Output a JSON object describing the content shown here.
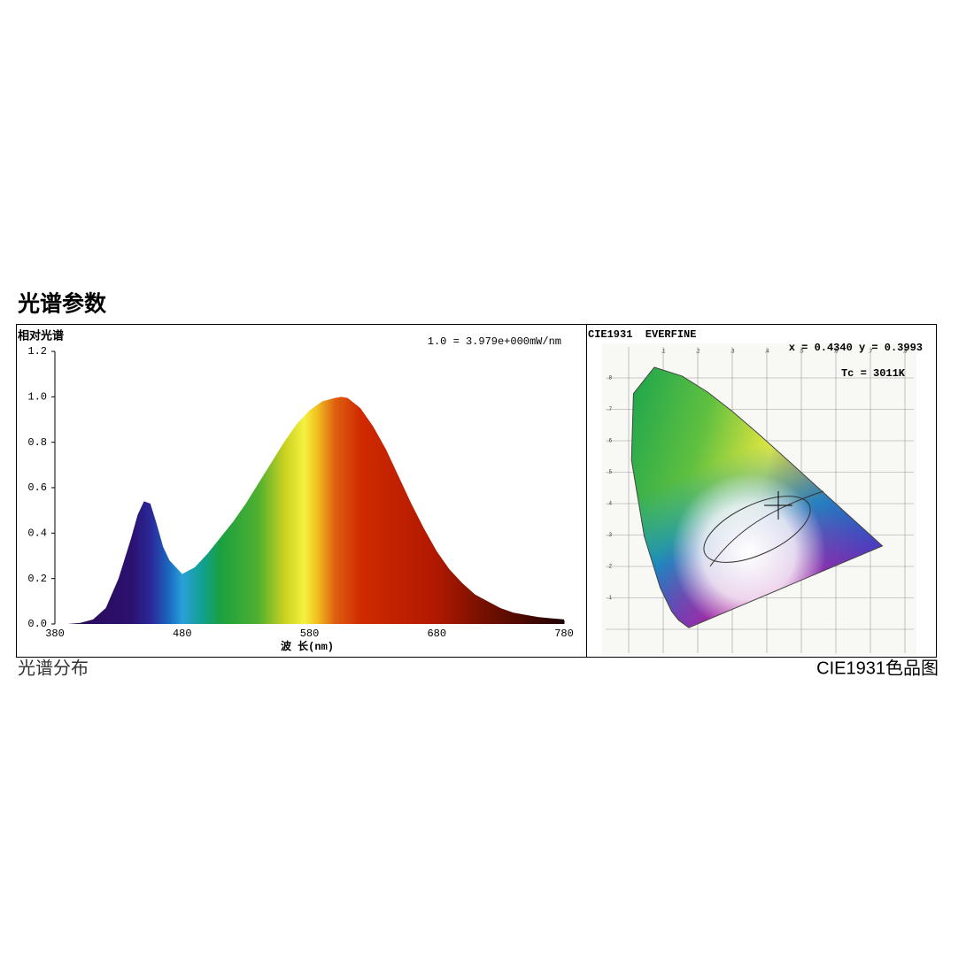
{
  "page": {
    "title": "光谱参数",
    "left_caption": "光谱分布",
    "right_caption": "CIE1931色品图"
  },
  "chart_data": {
    "type": "area",
    "y_label": "相对光谱",
    "note": "1.0 = 3.979e+000mW/nm",
    "x_label": "波 长(nm)",
    "x": [
      380,
      390,
      400,
      410,
      420,
      430,
      440,
      445,
      450,
      455,
      460,
      465,
      470,
      480,
      490,
      500,
      510,
      520,
      530,
      540,
      550,
      560,
      570,
      580,
      590,
      600,
      605,
      610,
      620,
      630,
      640,
      650,
      660,
      670,
      680,
      690,
      700,
      710,
      720,
      730,
      740,
      750,
      760,
      770,
      780
    ],
    "series": [
      {
        "values": [
          0,
          0,
          0.005,
          0.02,
          0.07,
          0.2,
          0.38,
          0.48,
          0.54,
          0.53,
          0.44,
          0.34,
          0.28,
          0.22,
          0.25,
          0.31,
          0.38,
          0.45,
          0.53,
          0.62,
          0.71,
          0.8,
          0.88,
          0.94,
          0.98,
          0.995,
          1.0,
          0.995,
          0.95,
          0.87,
          0.77,
          0.65,
          0.53,
          0.42,
          0.32,
          0.24,
          0.18,
          0.13,
          0.1,
          0.07,
          0.05,
          0.04,
          0.03,
          0.025,
          0.02
        ]
      }
    ],
    "xlim": [
      380,
      780
    ],
    "xticks": [
      380,
      480,
      580,
      680,
      780
    ],
    "ylim": [
      0,
      1.2
    ],
    "yticks": [
      {
        "value": 0,
        "label": "0.0"
      },
      0.2,
      0.4,
      0.6,
      0.8,
      {
        "value": 1,
        "label": "1.0"
      },
      1.2
    ]
  },
  "cie": {
    "header": "CIE1931  EVERFINE",
    "coords": "x = 0.4340 y = 0.3993",
    "tc": "Tc = 3011K",
    "ticks": [
      ".1",
      ".2",
      ".3",
      ".4",
      ".5",
      ".6",
      ".7",
      ".8"
    ]
  }
}
